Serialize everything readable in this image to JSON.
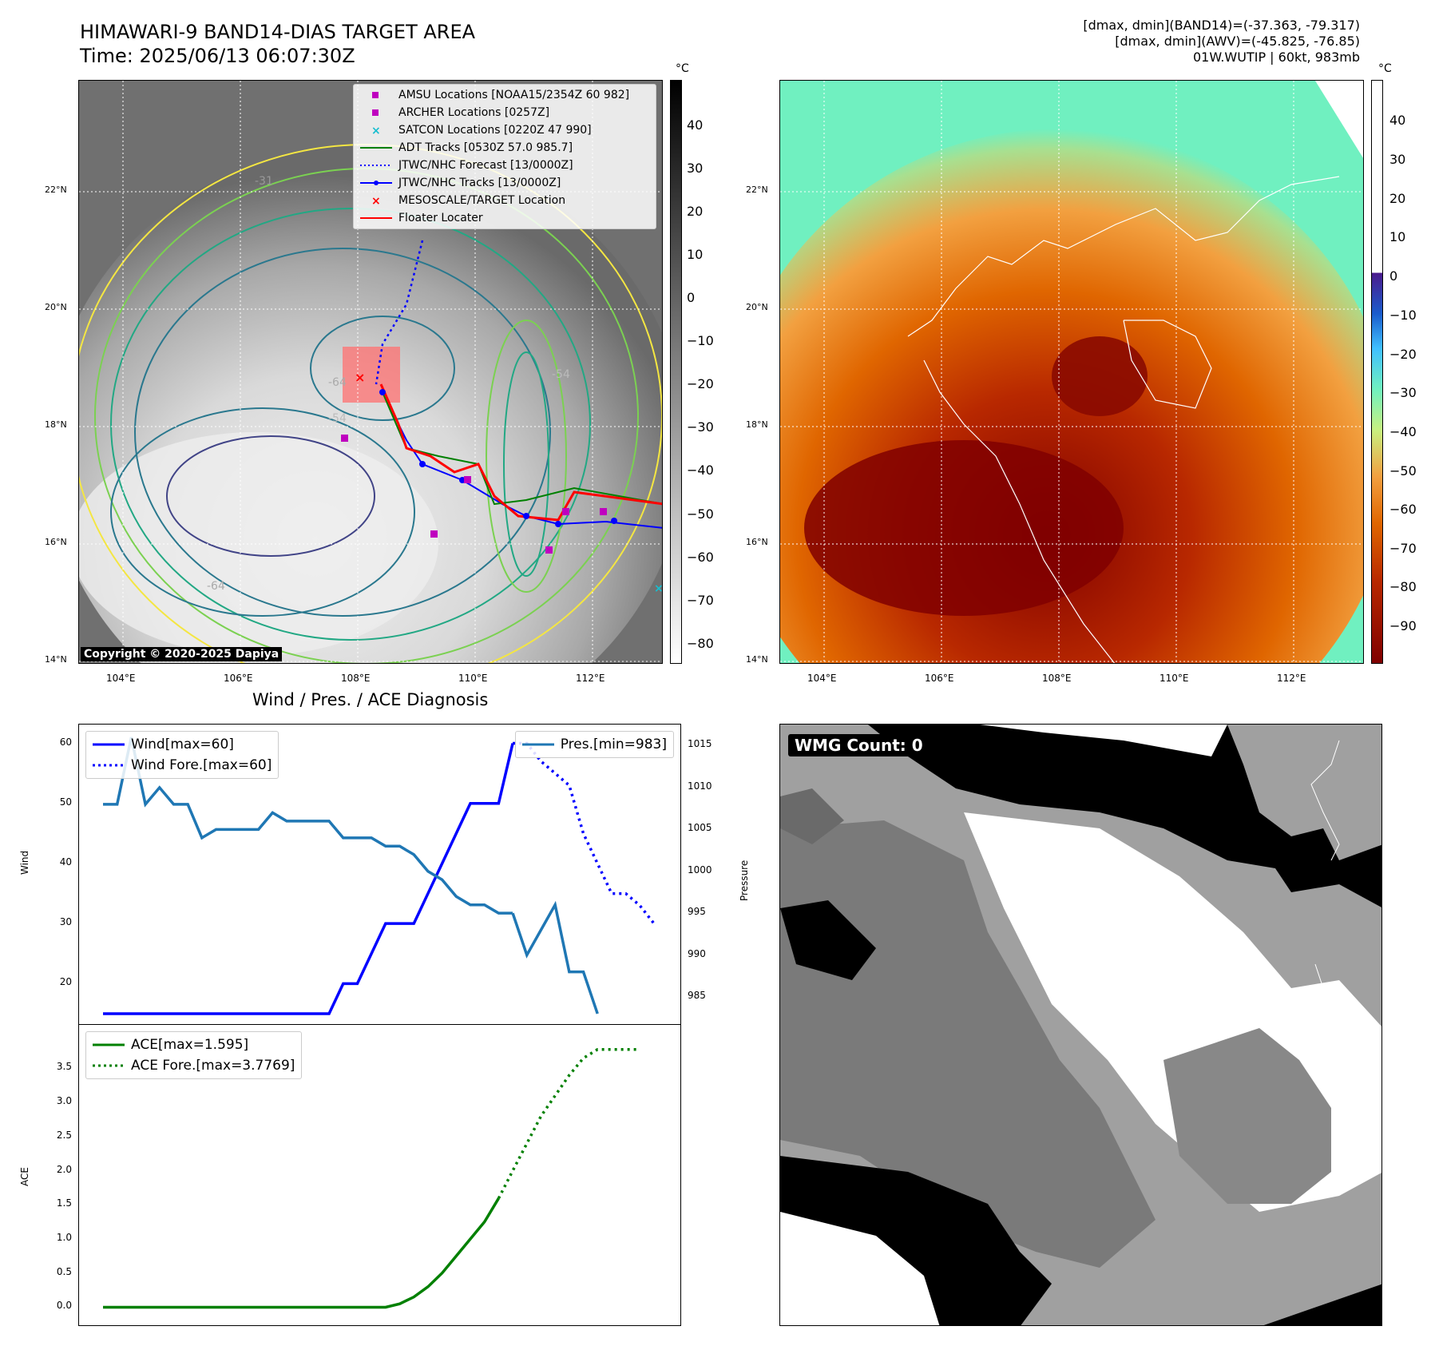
{
  "header": {
    "title_line1": "HIMAWARI-9 BAND14-DIAS TARGET AREA",
    "title_line2": "Time: 2025/06/13 06:07:30Z",
    "info_line1": "[dmax, dmin](BAND14)=(-37.363, -79.317)",
    "info_line2": "[dmax, dmin](AWV)=(-45.825, -76.85)",
    "info_line3": "01W.WUTIP | 60kt, 983mb"
  },
  "copyright": "Copyright © 2020-2025 Dapiya",
  "map": {
    "lon_ticks": [
      "104°E",
      "106°E",
      "108°E",
      "110°E",
      "112°E"
    ],
    "lat_ticks": [
      "22°N",
      "20°N",
      "18°N",
      "16°N",
      "14°N"
    ],
    "contour_labels": [
      "-31",
      "-64",
      "-54",
      "-54",
      "-64",
      "-64",
      "-54"
    ],
    "legend": [
      {
        "label": "AMSU Locations [NOAA15/2354Z 60 982]",
        "color": "#bf00bf",
        "marker": "square"
      },
      {
        "label": "ARCHER Locations [0257Z]",
        "color": "#bf00bf",
        "marker": "square"
      },
      {
        "label": "SATCON Locations [0220Z 47 990]",
        "color": "#17becf",
        "marker": "x"
      },
      {
        "label": "ADT Tracks [0530Z 57.0 985.7]",
        "color": "#008000",
        "marker": "line"
      },
      {
        "label": "JTWC/NHC Forecast [13/0000Z]",
        "color": "#0000ff",
        "marker": "dotted"
      },
      {
        "label": "JTWC/NHC Tracks [13/0000Z]",
        "color": "#0000ff",
        "marker": "line-dot"
      },
      {
        "label": "MESOSCALE/TARGET Location",
        "color": "#ff0000",
        "marker": "x"
      },
      {
        "label": "Floater Locater",
        "color": "#ff0000",
        "marker": "line"
      }
    ]
  },
  "colorbar_gray": {
    "unit": "°C",
    "ticks": [
      "40",
      "30",
      "20",
      "10",
      "0",
      "−10",
      "−20",
      "−30",
      "−40",
      "−50",
      "−60",
      "−70",
      "−80"
    ]
  },
  "colorbar_awv": {
    "unit": "°C",
    "ticks": [
      "40",
      "30",
      "20",
      "10",
      "0",
      "−10",
      "−20",
      "−30",
      "−40",
      "−50",
      "−60",
      "−70",
      "−80",
      "−90"
    ]
  },
  "wmg": {
    "label": "WMG Count: 0"
  },
  "chart_data": [
    {
      "type": "line",
      "title": "Wind / Pres. / ACE Diagnosis",
      "ylabel": "Wind",
      "ylabel_right": "Pressure",
      "ylim": [
        15,
        61
      ],
      "ylim_right": [
        983,
        1016
      ],
      "yticks": [
        "60",
        "50",
        "40",
        "30",
        "20"
      ],
      "yticks_right": [
        "1015",
        "1010",
        "1005",
        "1000",
        "995",
        "990",
        "985"
      ],
      "series": [
        {
          "name": "Wind[max=60]",
          "style": "solid",
          "color": "#0000ff",
          "axis": "left",
          "x": [
            0,
            1,
            2,
            3,
            4,
            5,
            6,
            7,
            8,
            9,
            10,
            11,
            12,
            13,
            14,
            15,
            16,
            17,
            18,
            19,
            20,
            21,
            22,
            23,
            24,
            25,
            26,
            27,
            28,
            29
          ],
          "y": [
            15,
            15,
            15,
            15,
            15,
            15,
            15,
            15,
            15,
            15,
            15,
            15,
            15,
            15,
            15,
            15,
            15,
            20,
            20,
            25,
            30,
            30,
            30,
            35,
            40,
            45,
            50,
            50,
            50,
            60
          ]
        },
        {
          "name": "Wind Fore.[max=60]",
          "style": "dotted",
          "color": "#0000ff",
          "axis": "left",
          "x": [
            29,
            30,
            31,
            32,
            33,
            34,
            35,
            36,
            37,
            38,
            39
          ],
          "y": [
            60,
            60,
            57,
            55,
            53,
            45,
            40,
            35,
            35,
            33,
            30
          ]
        },
        {
          "name": "Pres.[min=983]",
          "style": "solid",
          "color": "#1f77b4",
          "axis": "right",
          "x": [
            0,
            1,
            2,
            3,
            4,
            5,
            6,
            7,
            8,
            9,
            10,
            11,
            12,
            13,
            14,
            15,
            16,
            17,
            18,
            19,
            20,
            21,
            22,
            23,
            24,
            25,
            26,
            27,
            28,
            29
          ],
          "y": [
            1008,
            1008,
            1016,
            1008,
            1010,
            1008,
            1008,
            1004,
            1005,
            1005,
            1005,
            1005,
            1007,
            1006,
            1006,
            1006,
            1006,
            1004,
            1004,
            1004,
            1003,
            1003,
            1002,
            1000,
            999,
            997,
            996,
            996,
            995,
            995
          ]
        },
        {
          "name": "",
          "style": "solid",
          "color": "#1f77b4",
          "axis": "right",
          "x": [
            29,
            30,
            31,
            32,
            33,
            34,
            35
          ],
          "y": [
            995,
            990,
            993,
            996,
            988,
            988,
            983
          ]
        }
      ]
    },
    {
      "type": "line",
      "ylabel": "ACE",
      "ylim": [
        -0.1,
        3.95
      ],
      "yticks": [
        "3.5",
        "3.0",
        "2.5",
        "2.0",
        "1.5",
        "1.0",
        "0.5",
        "0.0"
      ],
      "series": [
        {
          "name": "ACE[max=1.595]",
          "style": "solid",
          "color": "#008000",
          "x": [
            0,
            5,
            10,
            15,
            20,
            21,
            22,
            23,
            24,
            25,
            26,
            27,
            28
          ],
          "y": [
            0,
            0,
            0,
            0,
            0,
            0.05,
            0.15,
            0.3,
            0.5,
            0.75,
            1.0,
            1.25,
            1.595
          ]
        },
        {
          "name": "ACE Fore.[max=3.7769]",
          "style": "dotted",
          "color": "#008000",
          "x": [
            28,
            29,
            30,
            31,
            32,
            33,
            34,
            35,
            36,
            37,
            38
          ],
          "y": [
            1.595,
            2.0,
            2.4,
            2.8,
            3.1,
            3.4,
            3.65,
            3.7769,
            3.7769,
            3.7769,
            3.7769
          ]
        }
      ]
    }
  ]
}
